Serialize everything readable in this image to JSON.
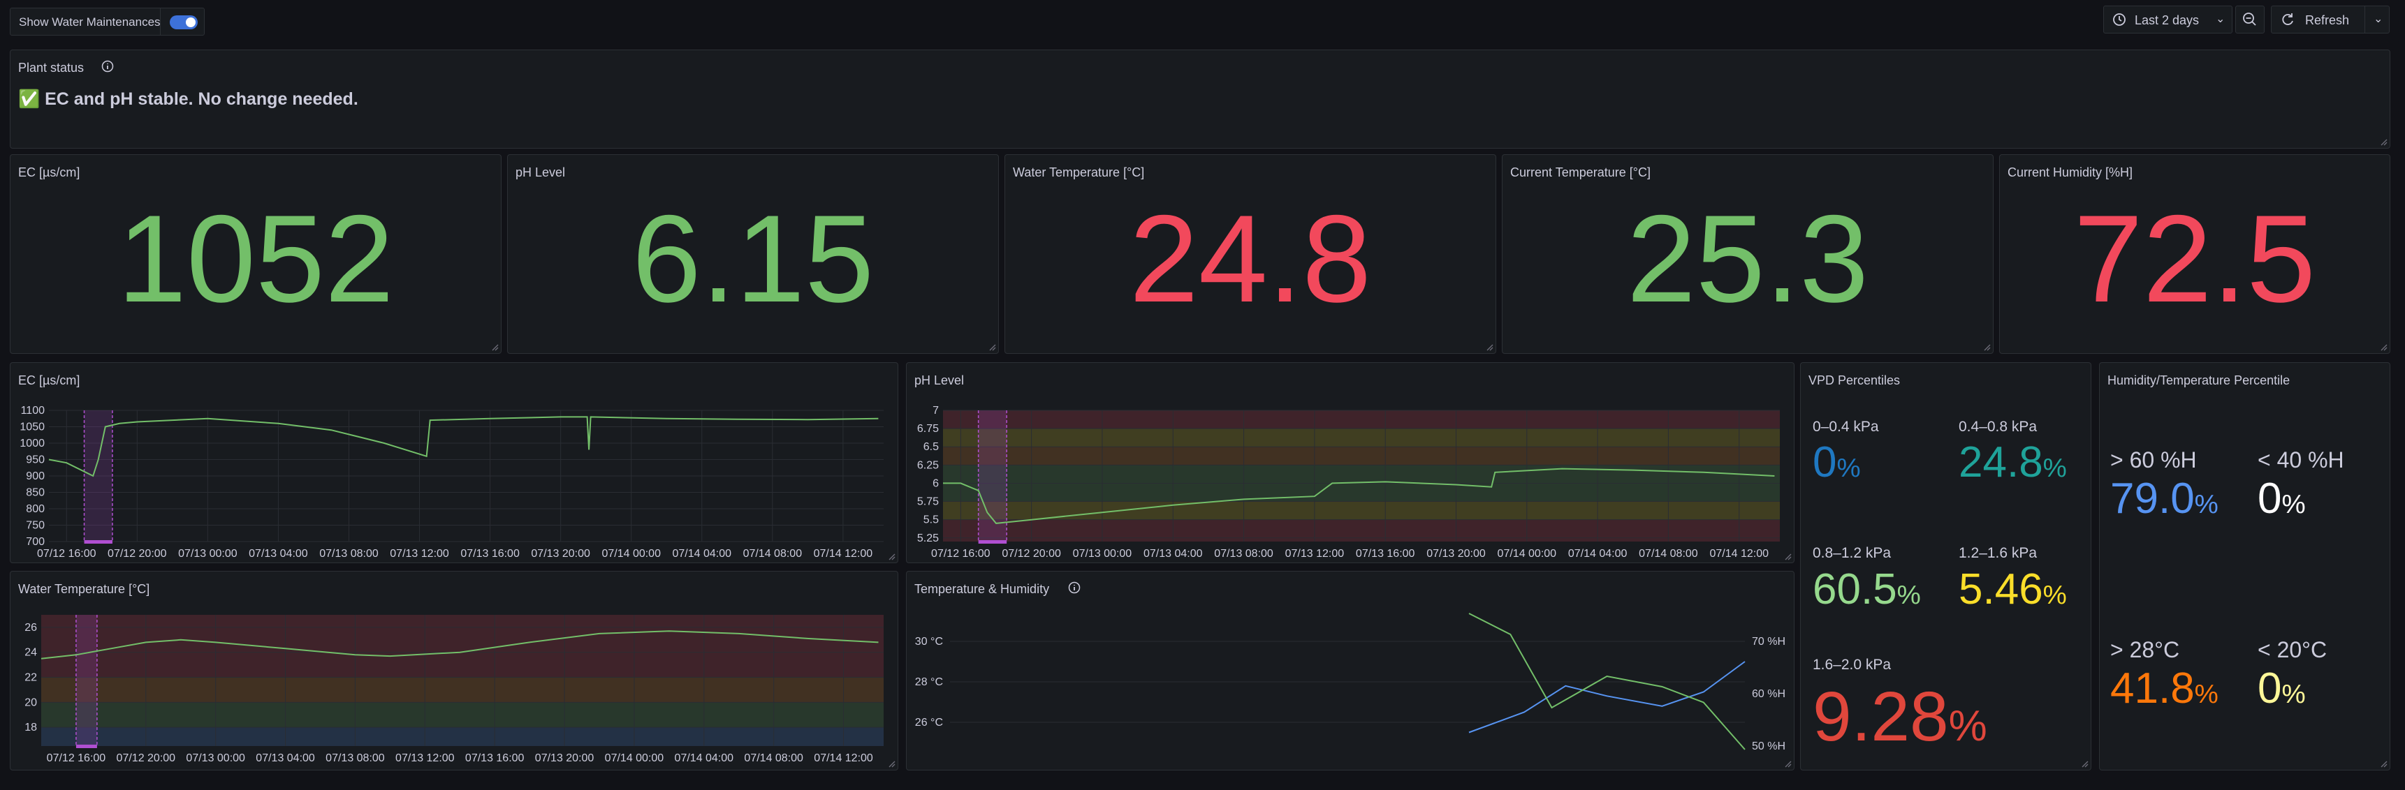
{
  "toolbar": {
    "toggle_label": "Show Water Maintenances",
    "toggle_on": true,
    "time_range": "Last 2 days",
    "refresh_label": "Refresh"
  },
  "plant_status": {
    "title": "Plant status",
    "message": "✅ EC and pH stable. No change needed."
  },
  "stats": [
    {
      "title": "EC [µs/cm]",
      "value": "1052",
      "color": "#73bf69"
    },
    {
      "title": "pH Level",
      "value": "6.15",
      "color": "#73bf69"
    },
    {
      "title": "Water Temperature [°C]",
      "value": "24.8",
      "color": "#f2495c"
    },
    {
      "title": "Current Temperature [°C]",
      "value": "25.3",
      "color": "#73bf69"
    },
    {
      "title": "Current Humidity [%H]",
      "value": "72.5",
      "color": "#f2495c"
    }
  ],
  "colors": {
    "green": "#73bf69",
    "red": "#f2495c",
    "blue": "#5794f2",
    "teal": "#1fa39a",
    "yellow": "#fade2a",
    "orange": "#ff780a",
    "annotation": "#b04fd1",
    "dark_red": "#e0473c",
    "light_yellow": "#fff899",
    "light_green": "#96d98d",
    "dark_blue": "#1f78c1"
  },
  "chart_data": [
    {
      "id": "ec",
      "type": "line",
      "title": "EC [µs/cm]",
      "yticks": [
        "1100",
        "1050",
        "1000",
        "950",
        "900",
        "850",
        "800",
        "750",
        "700"
      ],
      "ylim": [
        700,
        1100
      ],
      "xticks": [
        "07/12 16:00",
        "07/12 20:00",
        "07/13 00:00",
        "07/13 04:00",
        "07/13 08:00",
        "07/13 12:00",
        "07/13 16:00",
        "07/13 20:00",
        "07/14 00:00",
        "07/14 04:00",
        "07/14 08:00",
        "07/14 12:00"
      ],
      "xlim": [
        15,
        62.3
      ],
      "series": [
        {
          "values": [
            [
              15,
              950
            ],
            [
              16,
              940
            ],
            [
              17.5,
              900
            ],
            [
              17.8,
              950
            ],
            [
              18.2,
              1050
            ],
            [
              19,
              1060
            ],
            [
              20,
              1065
            ],
            [
              22,
              1070
            ],
            [
              24,
              1075
            ],
            [
              28,
              1060
            ],
            [
              31,
              1040
            ],
            [
              34,
              1000
            ],
            [
              36.4,
              960
            ],
            [
              36.6,
              1070
            ],
            [
              40,
              1075
            ],
            [
              44,
              1080
            ],
            [
              45.5,
              1080
            ],
            [
              45.6,
              980
            ],
            [
              45.7,
              1080
            ],
            [
              50,
              1075
            ],
            [
              54,
              1073
            ],
            [
              58,
              1072
            ],
            [
              62,
              1075
            ]
          ]
        }
      ]
    },
    {
      "id": "ph",
      "type": "line",
      "title": "pH Level",
      "yticks": [
        "7",
        "6.75",
        "6.5",
        "6.25",
        "6",
        "5.75",
        "5.5",
        "5.25"
      ],
      "ylim": [
        5.2,
        7
      ],
      "xticks": [
        "07/12 16:00",
        "07/12 20:00",
        "07/13 00:00",
        "07/13 04:00",
        "07/13 08:00",
        "07/13 12:00",
        "07/13 16:00",
        "07/13 20:00",
        "07/14 00:00",
        "07/14 04:00",
        "07/14 08:00",
        "07/14 12:00"
      ],
      "xlim": [
        15,
        62.3
      ],
      "series": [
        {
          "values": [
            [
              15,
              6.0
            ],
            [
              16,
              6.0
            ],
            [
              17,
              5.9
            ],
            [
              17.5,
              5.6
            ],
            [
              18,
              5.45
            ],
            [
              20,
              5.5
            ],
            [
              24,
              5.6
            ],
            [
              28,
              5.7
            ],
            [
              32,
              5.78
            ],
            [
              36,
              5.82
            ],
            [
              37,
              6.0
            ],
            [
              40,
              6.02
            ],
            [
              44,
              5.98
            ],
            [
              46,
              5.95
            ],
            [
              46.2,
              6.15
            ],
            [
              50,
              6.2
            ],
            [
              54,
              6.18
            ],
            [
              58,
              6.15
            ],
            [
              62,
              6.1
            ]
          ]
        }
      ]
    },
    {
      "id": "water",
      "type": "line",
      "title": "Water Temperature [°C]",
      "yticks": [
        "26",
        "24",
        "22",
        "20",
        "18"
      ],
      "ylim": [
        16.5,
        27
      ],
      "xticks": [
        "07/12 16:00",
        "07/12 20:00",
        "07/13 00:00",
        "07/13 04:00",
        "07/13 08:00",
        "07/13 12:00",
        "07/13 16:00",
        "07/13 20:00",
        "07/14 00:00",
        "07/14 04:00",
        "07/14 08:00",
        "07/14 12:00"
      ],
      "xlim": [
        14,
        62.3
      ],
      "series": [
        {
          "values": [
            [
              14,
              23.5
            ],
            [
              16,
              23.8
            ],
            [
              18,
              24.3
            ],
            [
              20,
              24.8
            ],
            [
              22,
              25
            ],
            [
              24,
              24.8
            ],
            [
              28,
              24.3
            ],
            [
              32,
              23.8
            ],
            [
              34,
              23.7
            ],
            [
              38,
              24
            ],
            [
              42,
              24.8
            ],
            [
              46,
              25.5
            ],
            [
              50,
              25.7
            ],
            [
              54,
              25.5
            ],
            [
              58,
              25.1
            ],
            [
              62,
              24.8
            ]
          ]
        }
      ]
    },
    {
      "id": "th",
      "type": "line",
      "title": "Temperature & Humidity",
      "yticks_left": [
        "30 °C",
        "28 °C",
        "26 °C"
      ],
      "yticks_right": [
        "70 %H",
        "60 %H",
        "50 %H"
      ],
      "xticks": [],
      "series": [
        {
          "values": [
            [
              0,
              25.5
            ],
            [
              0.2,
              26.5
            ],
            [
              0.35,
              27.8
            ],
            [
              0.5,
              27.3
            ],
            [
              0.7,
              26.8
            ],
            [
              0.85,
              27.5
            ],
            [
              1,
              29
            ]
          ]
        },
        {
          "values": [
            [
              0,
              76
            ],
            [
              0.15,
              72
            ],
            [
              0.3,
              58
            ],
            [
              0.5,
              64
            ],
            [
              0.7,
              62
            ],
            [
              0.85,
              59
            ],
            [
              1,
              50
            ]
          ]
        }
      ]
    }
  ],
  "chart_titles": {
    "ec": "EC [µs/cm]",
    "ph": "pH Level",
    "water": "Water Temperature [°C]",
    "th": "Temperature & Humidity"
  },
  "vpd": {
    "title": "VPD Percentiles",
    "items": [
      {
        "label": "0–0.4 kPa",
        "value": "0",
        "unit": "%",
        "color": "#1f78c1"
      },
      {
        "label": "0.4–0.8 kPa",
        "value": "24.8",
        "unit": "%",
        "color": "#1fa39a"
      },
      {
        "label": "0.8–1.2 kPa",
        "value": "60.5",
        "unit": "%",
        "color": "#96d98d"
      },
      {
        "label": "1.2–1.6 kPa",
        "value": "5.46",
        "unit": "%",
        "color": "#fade2a"
      },
      {
        "label": "1.6–2.0 kPa",
        "value": "9.28",
        "unit": "%",
        "color": "#e0473c"
      }
    ]
  },
  "humtemp": {
    "title": "Humidity/Temperature Percentile",
    "items": [
      {
        "label": "> 60 %H",
        "value": "79.0",
        "unit": "%",
        "color": "#5794f2"
      },
      {
        "label": "< 40 %H",
        "value": "0",
        "unit": "%",
        "color": "#ffffff"
      },
      {
        "label": "> 28°C",
        "value": "41.8",
        "unit": "%",
        "color": "#ff780a"
      },
      {
        "label": "< 20°C",
        "value": "0",
        "unit": "%",
        "color": "#fff899"
      }
    ]
  }
}
